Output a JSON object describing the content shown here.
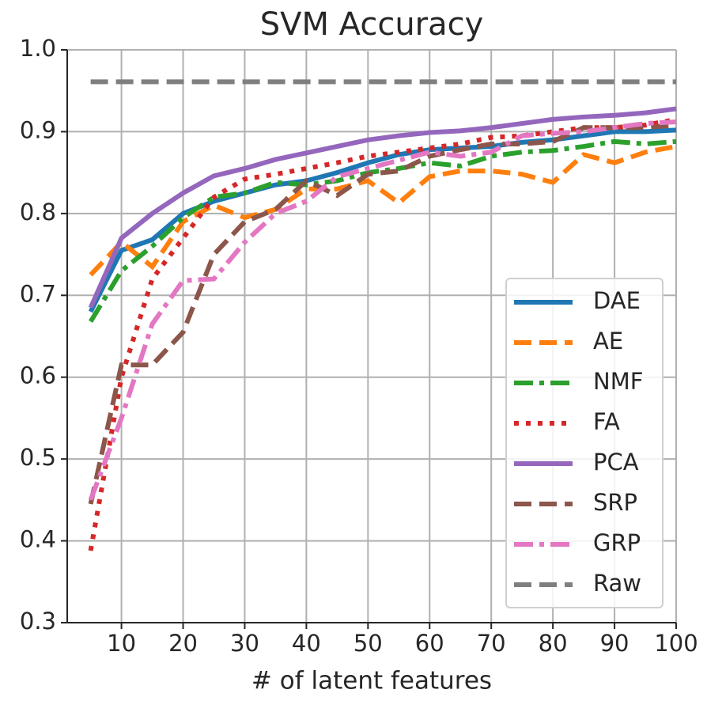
{
  "chart_data": {
    "type": "line",
    "title": "SVM Accuracy",
    "x_label": "# of latent features",
    "x": [
      5,
      10,
      15,
      20,
      25,
      30,
      35,
      40,
      45,
      50,
      55,
      60,
      65,
      70,
      75,
      80,
      85,
      90,
      95,
      100
    ],
    "series": [
      {
        "name": "DAE",
        "color": "#1f77b4",
        "style": "solid",
        "values": [
          0.68,
          0.755,
          0.768,
          0.8,
          0.815,
          0.825,
          0.835,
          0.84,
          0.85,
          0.862,
          0.872,
          0.878,
          0.88,
          0.882,
          0.887,
          0.89,
          0.895,
          0.9,
          0.9,
          0.902
        ]
      },
      {
        "name": "AE",
        "color": "#ff7f0e",
        "style": "dashed",
        "values": [
          0.725,
          0.765,
          0.735,
          0.79,
          0.81,
          0.795,
          0.805,
          0.83,
          0.83,
          0.84,
          0.813,
          0.845,
          0.852,
          0.852,
          0.848,
          0.838,
          0.872,
          0.862,
          0.875,
          0.882
        ]
      },
      {
        "name": "NMF",
        "color": "#2ca02c",
        "style": "dashdot",
        "values": [
          0.668,
          0.73,
          0.76,
          0.795,
          0.82,
          0.825,
          0.838,
          0.835,
          0.84,
          0.85,
          0.855,
          0.862,
          0.858,
          0.87,
          0.875,
          0.877,
          0.882,
          0.888,
          0.885,
          0.888
        ]
      },
      {
        "name": "FA",
        "color": "#d62728",
        "style": "dotted",
        "values": [
          0.388,
          0.6,
          0.72,
          0.77,
          0.82,
          0.842,
          0.848,
          0.855,
          0.862,
          0.87,
          0.875,
          0.88,
          0.885,
          0.893,
          0.895,
          0.9,
          0.905,
          0.905,
          0.908,
          0.915
        ]
      },
      {
        "name": "PCA",
        "color": "#9467bd",
        "style": "solid",
        "values": [
          0.685,
          0.77,
          0.8,
          0.825,
          0.846,
          0.855,
          0.866,
          0.874,
          0.882,
          0.89,
          0.895,
          0.899,
          0.901,
          0.905,
          0.91,
          0.915,
          0.918,
          0.92,
          0.923,
          0.928
        ]
      },
      {
        "name": "SRP",
        "color": "#8c564b",
        "style": "dashed",
        "values": [
          0.445,
          0.615,
          0.615,
          0.655,
          0.75,
          0.79,
          0.805,
          0.84,
          0.822,
          0.848,
          0.852,
          0.87,
          0.878,
          0.885,
          0.885,
          0.888,
          0.905,
          0.905,
          0.905,
          0.908
        ]
      },
      {
        "name": "GRP",
        "color": "#e377c2",
        "style": "dashdot",
        "values": [
          0.45,
          0.55,
          0.665,
          0.718,
          0.72,
          0.765,
          0.8,
          0.815,
          0.845,
          0.855,
          0.865,
          0.875,
          0.87,
          0.875,
          0.895,
          0.898,
          0.9,
          0.905,
          0.91,
          0.912
        ]
      },
      {
        "name": "Raw",
        "color": "#7f7f7f",
        "style": "dashed",
        "values": [
          0.961,
          0.961,
          0.961,
          0.961,
          0.961,
          0.961,
          0.961,
          0.961,
          0.961,
          0.961,
          0.961,
          0.961,
          0.961,
          0.961,
          0.961,
          0.961,
          0.961,
          0.961,
          0.961,
          0.961
        ]
      }
    ],
    "xlim": [
      1.2,
      100
    ],
    "xticks": [
      10,
      20,
      30,
      40,
      50,
      60,
      70,
      80,
      90,
      100
    ],
    "ylim": [
      0.3,
      1.0
    ],
    "yticks": [
      {
        "value": 0.3,
        "label": "0.3"
      },
      {
        "value": 0.4,
        "label": "0.4"
      },
      {
        "value": 0.5,
        "label": "0.5"
      },
      {
        "value": 0.6,
        "label": "0.6"
      },
      {
        "value": 0.7,
        "label": "0.7"
      },
      {
        "value": 0.8,
        "label": "0.8"
      },
      {
        "value": 0.9,
        "label": "0.9"
      },
      {
        "value": 1.0,
        "label": "1.0"
      }
    ],
    "grid": true,
    "legend": "lower right"
  }
}
